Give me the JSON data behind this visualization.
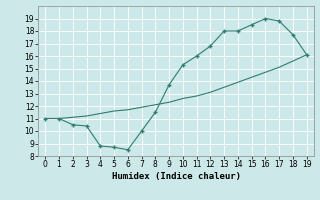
{
  "xlabel": "Humidex (Indice chaleur)",
  "curve1_x": [
    0,
    1,
    2,
    3,
    4,
    5,
    6,
    7,
    8,
    9,
    10,
    11,
    12,
    13,
    14,
    15,
    16,
    17,
    18,
    19
  ],
  "curve1_y": [
    11,
    11,
    10.5,
    10.4,
    8.8,
    8.7,
    8.5,
    10.0,
    11.5,
    13.7,
    15.3,
    16.0,
    16.8,
    18.0,
    18.0,
    18.5,
    19.0,
    18.8,
    17.7,
    16.1
  ],
  "curve2_x": [
    0,
    1,
    2,
    3,
    4,
    5,
    6,
    7,
    8,
    9,
    10,
    11,
    12,
    13,
    14,
    15,
    16,
    17,
    18,
    19
  ],
  "curve2_y": [
    11,
    11,
    11.1,
    11.2,
    11.4,
    11.6,
    11.7,
    11.9,
    12.1,
    12.3,
    12.6,
    12.8,
    13.1,
    13.5,
    13.9,
    14.3,
    14.7,
    15.1,
    15.6,
    16.1
  ],
  "line_color": "#2e7d6e",
  "bg_color": "#cce8e8",
  "grid_color": "#ffffff",
  "ylim": [
    8,
    20
  ],
  "xlim": [
    -0.5,
    19.5
  ],
  "yticks": [
    8,
    9,
    10,
    11,
    12,
    13,
    14,
    15,
    16,
    17,
    18,
    19
  ],
  "xticks": [
    0,
    1,
    2,
    3,
    4,
    5,
    6,
    7,
    8,
    9,
    10,
    11,
    12,
    13,
    14,
    15,
    16,
    17,
    18,
    19
  ],
  "tick_fontsize": 5.5,
  "xlabel_fontsize": 6.5,
  "marker": "+",
  "markersize": 3.5,
  "linewidth": 0.8
}
